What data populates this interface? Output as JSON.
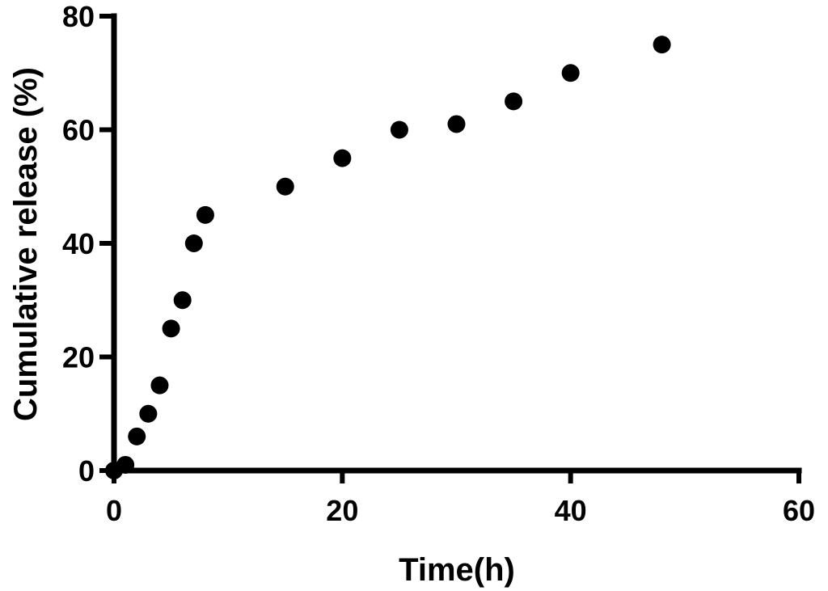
{
  "chart_data": {
    "type": "scatter",
    "title": "",
    "xlabel": "Time(h)",
    "ylabel": "Cumulative release (%)",
    "xlim": [
      0,
      60
    ],
    "ylim": [
      0,
      80
    ],
    "x_ticks": [
      0,
      20,
      40,
      60
    ],
    "y_ticks": [
      0,
      20,
      40,
      60,
      80
    ],
    "grid": false,
    "marker_color": "#000000",
    "series": [
      {
        "x": [
          0,
          1,
          2,
          3,
          4,
          5,
          6,
          7,
          8,
          15,
          20,
          25,
          30,
          35,
          40,
          48
        ],
        "y": [
          0,
          1,
          6,
          10,
          15,
          25,
          30,
          40,
          45,
          50,
          55,
          60,
          61,
          65,
          70,
          75
        ]
      }
    ]
  }
}
